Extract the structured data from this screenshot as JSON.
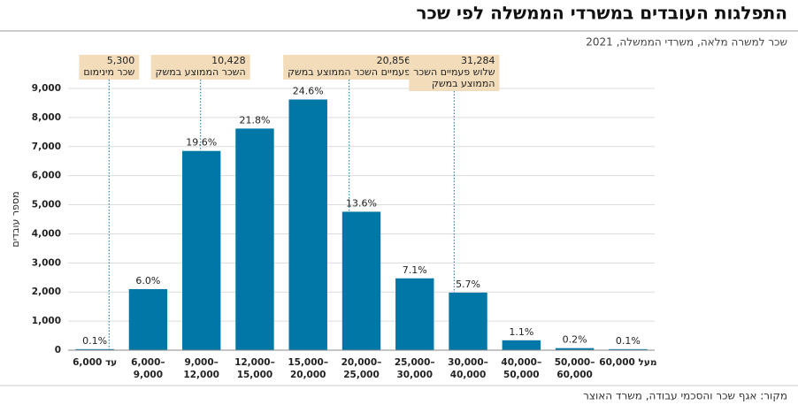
{
  "chart_data": {
    "type": "bar",
    "title": "התפלגות העובדים במשרדי הממשלה לפי שכר",
    "subtitle": "שכר למשרה מלאה, משרדי הממשלה, 2021",
    "y_axis_label": "מספר עובדים",
    "source": "מקור: אגף שכר והסכמי עבודה, משרד האוצר",
    "color": "#0077a6",
    "categories": [
      [
        "עד 6,000"
      ],
      [
        "6,000–",
        "9,000"
      ],
      [
        "9,000–",
        "12,000"
      ],
      [
        "12,000–",
        "15,000"
      ],
      [
        "15,000–",
        "20,000"
      ],
      [
        "20,000–",
        "25,000"
      ],
      [
        "25,000–",
        "30,000"
      ],
      [
        "30,000–",
        "40,000"
      ],
      [
        "40,000–",
        "50,000"
      ],
      [
        "50,000–",
        "60,000"
      ],
      [
        "מעל 60,000"
      ]
    ],
    "values": [
      35,
      2100,
      6850,
      7620,
      8620,
      4760,
      2470,
      1980,
      340,
      70,
      35
    ],
    "percent_labels": [
      "0.1%",
      "6.0%",
      "19.6%",
      "21.8%",
      "24.6%",
      "13.6%",
      "7.1%",
      "5.7%",
      "1.1%",
      "0.2%",
      "0.1%"
    ],
    "ylim": [
      0,
      9000
    ],
    "yticks": [
      0,
      {
        "value": 1000,
        "label": "1,000"
      },
      {
        "value": 2000,
        "label": "2,000"
      },
      {
        "value": 3000,
        "label": "3,000"
      },
      {
        "value": 4000,
        "label": "4,000"
      },
      {
        "value": 5000,
        "label": "5,000"
      },
      {
        "value": 6000,
        "label": "6,000"
      },
      {
        "value": 7000,
        "label": "7,000"
      },
      {
        "value": 8000,
        "label": "8,000"
      },
      {
        "value": 9000,
        "label": "9,000"
      }
    ],
    "grid": true,
    "reference_lines": [
      {
        "value": 5300,
        "value_label": "5,300",
        "label": [
          "שכר מינימום"
        ]
      },
      {
        "value": 10428,
        "value_label": "10,428",
        "label": [
          "השכר הממוצע במשק"
        ]
      },
      {
        "value": 20856,
        "value_label": "20,856",
        "label": [
          "פעמיים השכר הממוצע במשק"
        ]
      },
      {
        "value": 31284,
        "value_label": "31,284",
        "label": [
          "שלוש פעמיים השכר",
          "הממוצע במשק"
        ]
      }
    ]
  }
}
